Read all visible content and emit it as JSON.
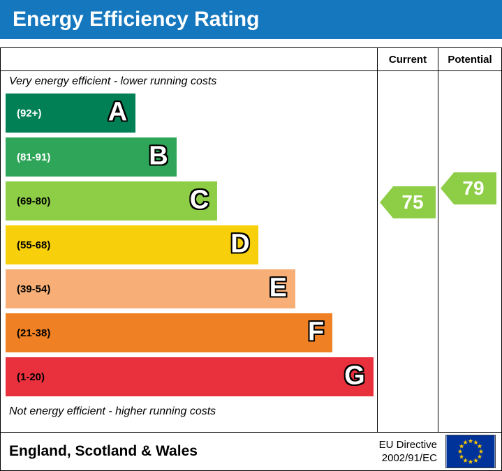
{
  "banner": {
    "title": "Energy Efficiency Rating",
    "bg_color": "#1577be"
  },
  "columns": {
    "current": "Current",
    "potential": "Potential"
  },
  "notes": {
    "top": "Very energy efficient - lower running costs",
    "bottom": "Not energy efficient - higher running costs"
  },
  "chart_data": {
    "type": "bar",
    "title": "Energy Efficiency Rating",
    "categories": [
      "A",
      "B",
      "C",
      "D",
      "E",
      "F",
      "G"
    ],
    "bands": [
      {
        "letter": "A",
        "range": "(92+)",
        "color": "#008054",
        "width_pct": 35,
        "range_text_color": "#ffffff"
      },
      {
        "letter": "B",
        "range": "(81-91)",
        "color": "#2ea558",
        "width_pct": 46,
        "range_text_color": "#ffffff"
      },
      {
        "letter": "C",
        "range": "(69-80)",
        "color": "#8dce46",
        "width_pct": 57,
        "range_text_color": "#000000"
      },
      {
        "letter": "D",
        "range": "(55-68)",
        "color": "#f7d00b",
        "width_pct": 68,
        "range_text_color": "#000000"
      },
      {
        "letter": "E",
        "range": "(39-54)",
        "color": "#f7af77",
        "width_pct": 78,
        "range_text_color": "#000000"
      },
      {
        "letter": "F",
        "range": "(21-38)",
        "color": "#ef8023",
        "width_pct": 88,
        "range_text_color": "#000000"
      },
      {
        "letter": "G",
        "range": "(1-20)",
        "color": "#e9313d",
        "width_pct": 99,
        "range_text_color": "#000000"
      }
    ],
    "current": {
      "value": 75,
      "band": "C",
      "color": "#8dce46"
    },
    "potential": {
      "value": 79,
      "band": "C",
      "color": "#8dce46"
    },
    "legend_position": "none",
    "grid": false
  },
  "footer": {
    "region": "England, Scotland & Wales",
    "directive_line1": "EU Directive",
    "directive_line2": "2002/91/EC",
    "flag": "eu-flag",
    "flag_bg": "#003399",
    "flag_star_color": "#ffcc00"
  }
}
